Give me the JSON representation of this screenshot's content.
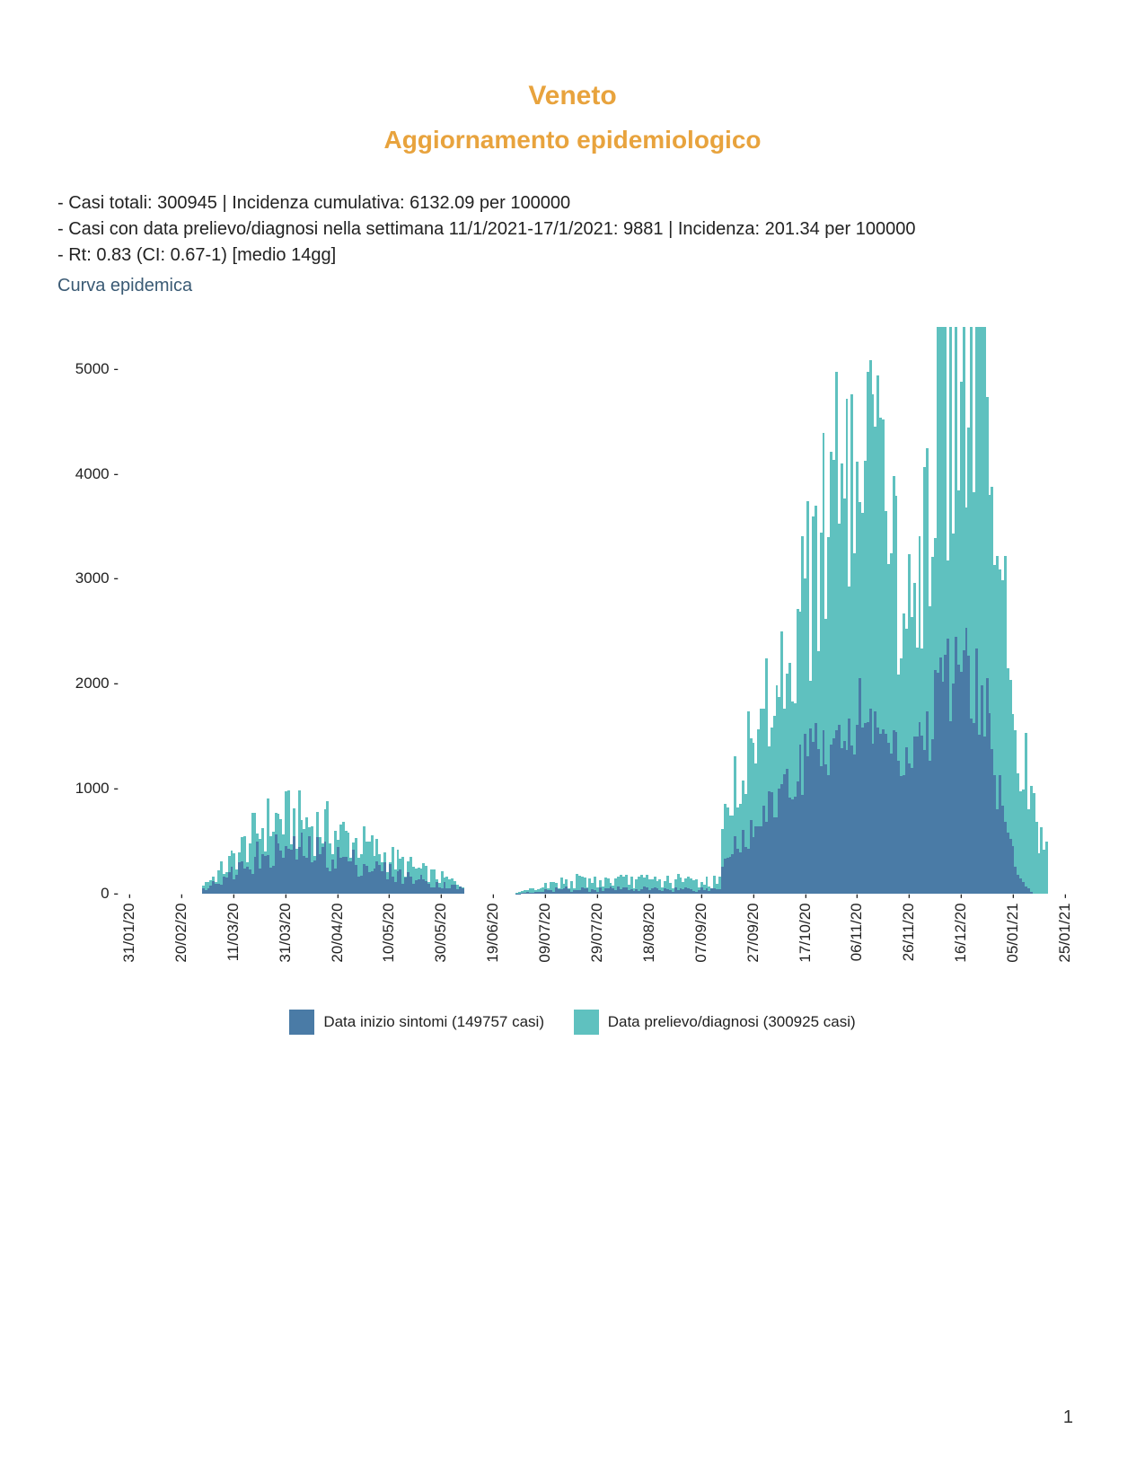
{
  "header": {
    "title": "Veneto",
    "subtitle": "Aggiornamento epidemiologico"
  },
  "stats": {
    "line1": "- Casi totali: 300945 | Incidenza cumulativa: 6132.09 per 100000",
    "line2": "- Casi con data prelievo/diagnosi nella settimana 11/1/2021-17/1/2021: 9881 | Incidenza: 201.34 per 100000",
    "line3": "- Rt: 0.83 (CI: 0.67-1) [medio 14gg]"
  },
  "chart": {
    "title": "Curva epidemica",
    "type": "stacked-bar-daily",
    "ylim": [
      0,
      5400
    ],
    "yticks": [
      0,
      1000,
      2000,
      3000,
      4000,
      5000
    ],
    "ytick_suffix": " -",
    "xticks": [
      "31/01/20",
      "20/02/20",
      "11/03/20",
      "31/03/20",
      "20/04/20",
      "10/05/20",
      "30/05/20",
      "19/06/20",
      "09/07/20",
      "29/07/20",
      "18/08/20",
      "07/09/20",
      "27/09/20",
      "17/10/20",
      "06/11/20",
      "26/11/20",
      "16/12/20",
      "05/01/21",
      "25/01/21"
    ],
    "xtick_suffix": " -",
    "background_color": "#ffffff",
    "title_color": "#3a5a74",
    "axis_text_color": "#222222",
    "series": [
      {
        "key": "sintomi",
        "label": "Data inizio sintomi (149757 casi)",
        "color": "#4a7ba6"
      },
      {
        "key": "diagnosi",
        "label": "Data prelievo/diagnosi (300925 casi)",
        "color": "#5fc1bf"
      }
    ],
    "n_days": 360,
    "wave1": {
      "start": 30,
      "peak": 60,
      "end": 130,
      "peak_diag": 700,
      "peak_sint": 420,
      "noise": 0.45
    },
    "mid": {
      "start": 150,
      "end": 230,
      "level_diag": 120,
      "level_sint": 45,
      "noise": 0.6
    },
    "wave2": {
      "start": 230,
      "peak1": 288,
      "dip": 300,
      "peak2": 322,
      "end": 355,
      "peak1_diag": 4050,
      "dip_diag": 2700,
      "peak2_diag": 5250,
      "sint_ratio": 0.42,
      "noise": 0.35
    }
  },
  "page_number": "1"
}
